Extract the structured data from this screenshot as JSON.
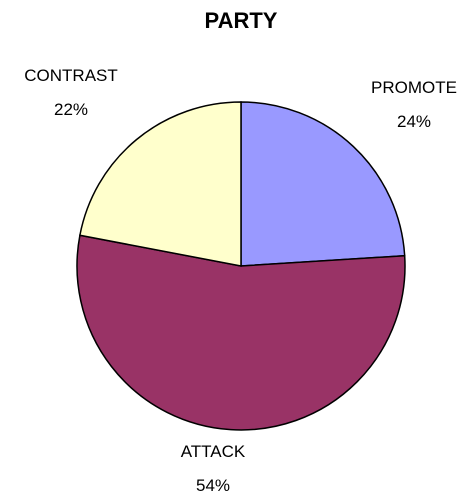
{
  "chart_data": {
    "type": "pie",
    "title": "PARTY",
    "start_angle_deg": 0,
    "direction": "clockwise",
    "slices": [
      {
        "label": "PROMOTE",
        "value": 24,
        "display": "24%",
        "color": "#9999FF"
      },
      {
        "label": "ATTACK",
        "value": 54,
        "display": "54%",
        "color": "#993366"
      },
      {
        "label": "CONTRAST",
        "value": 22,
        "display": "22%",
        "color": "#FFFFCC"
      }
    ],
    "legend": "none"
  }
}
